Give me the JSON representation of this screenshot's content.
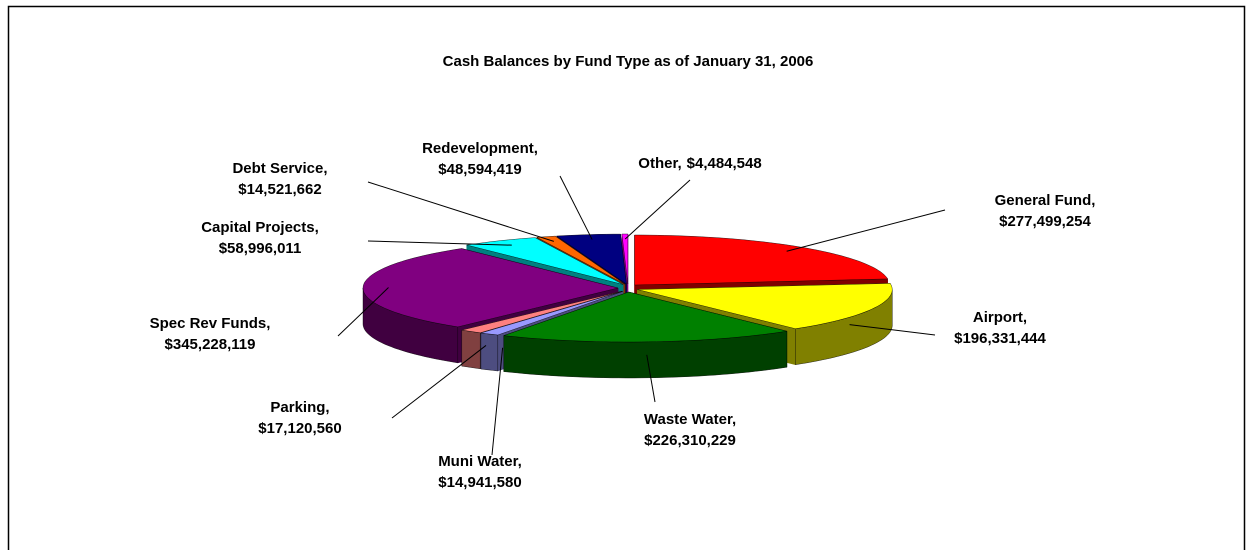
{
  "chart_data": {
    "type": "pie3d",
    "title": "Cash Balances by Fund Type as of January 31, 2006",
    "categories": [
      "General Fund,",
      "Airport,",
      "Waste Water,",
      "Muni Water,",
      "Parking,",
      "Spec Rev Funds,",
      "Capital Projects,",
      "Debt Service,",
      "Redevelopment,",
      "Other,"
    ],
    "values": [
      277499254,
      196331444,
      226310229,
      14941580,
      17120560,
      345228119,
      58996011,
      14521662,
      48594419,
      4484548
    ],
    "value_labels": [
      "$277,499,254",
      "$196,331,444",
      "$226,310,229",
      "$14,941,580",
      "$17,120,560",
      "$345,228,119",
      "$58,996,011",
      "$14,521,662",
      "$48,594,419",
      "$4,484,548"
    ],
    "colors": [
      "#ff0000",
      "#ffff00",
      "#008000",
      "#9999ff",
      "#ff8080",
      "#800080",
      "#00ffff",
      "#ff6600",
      "#000080",
      "#ff00ff"
    ]
  }
}
